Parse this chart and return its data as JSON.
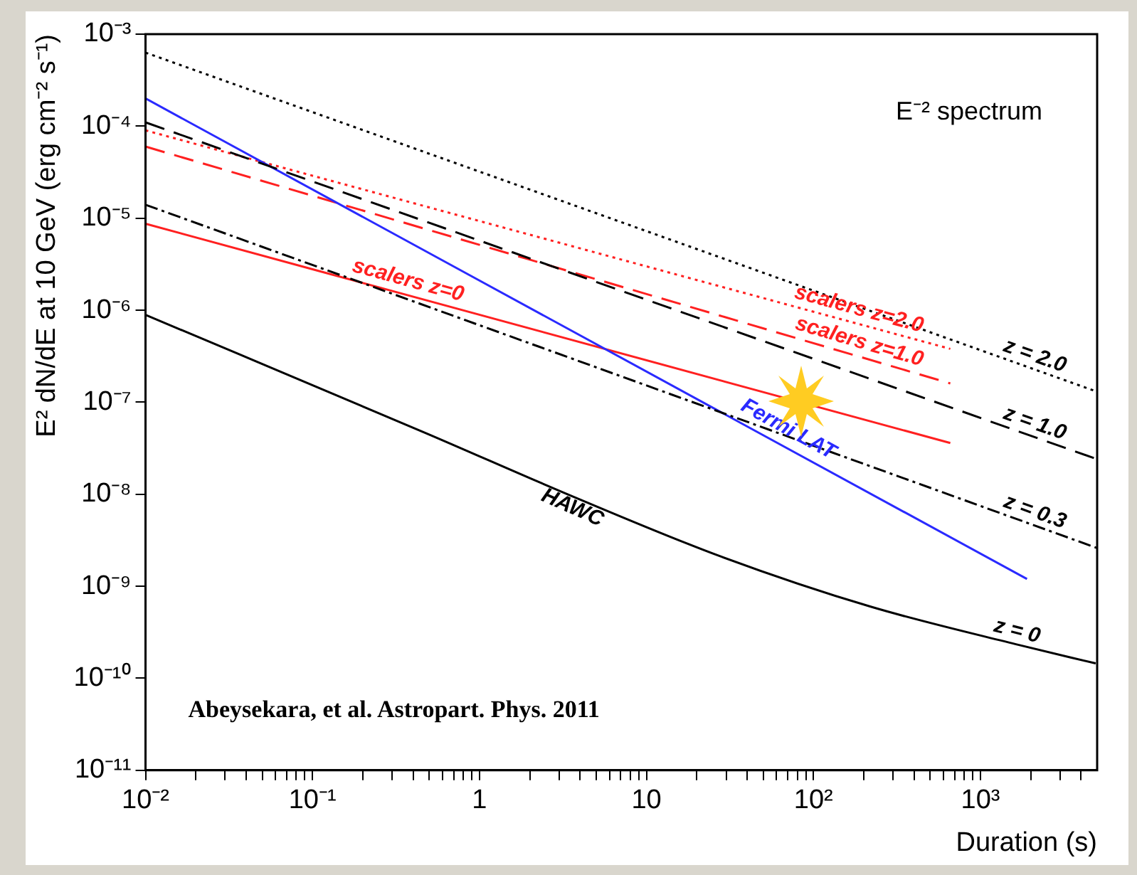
{
  "chart_data": {
    "type": "line",
    "xlabel": "Duration (s)",
    "ylabel": "E² dN/dE at 10 GeV (erg cm⁻² s⁻¹)",
    "log": "xy",
    "grid": false,
    "legend": false,
    "marker": "none",
    "xlim": [
      0.01,
      5000
    ],
    "ylim": [
      1e-11,
      0.001
    ],
    "xticks": [
      {
        "value": 0.01,
        "label": "10⁻²"
      },
      {
        "value": 0.02,
        "label": null
      },
      {
        "value": 0.03,
        "label": null
      },
      {
        "value": 0.04,
        "label": null
      },
      {
        "value": 0.05,
        "label": null
      },
      {
        "value": 0.06,
        "label": null
      },
      {
        "value": 0.07,
        "label": null
      },
      {
        "value": 0.08,
        "label": null
      },
      {
        "value": 0.09,
        "label": null
      },
      {
        "value": 0.1,
        "label": "10⁻¹"
      },
      {
        "value": 0.2,
        "label": null
      },
      {
        "value": 0.3,
        "label": null
      },
      {
        "value": 0.4,
        "label": null
      },
      {
        "value": 0.5,
        "label": null
      },
      {
        "value": 0.6,
        "label": null
      },
      {
        "value": 0.7,
        "label": null
      },
      {
        "value": 0.8,
        "label": null
      },
      {
        "value": 0.9,
        "label": null
      },
      1,
      {
        "value": 2,
        "label": null
      },
      {
        "value": 3,
        "label": null
      },
      {
        "value": 4,
        "label": null
      },
      {
        "value": 5,
        "label": null
      },
      {
        "value": 6,
        "label": null
      },
      {
        "value": 7,
        "label": null
      },
      {
        "value": 8,
        "label": null
      },
      {
        "value": 9,
        "label": null
      },
      10,
      {
        "value": 20,
        "label": null
      },
      {
        "value": 30,
        "label": null
      },
      {
        "value": 40,
        "label": null
      },
      {
        "value": 50,
        "label": null
      },
      {
        "value": 60,
        "label": null
      },
      {
        "value": 70,
        "label": null
      },
      {
        "value": 80,
        "label": null
      },
      {
        "value": 90,
        "label": null
      },
      {
        "value": 100,
        "label": "10²"
      },
      {
        "value": 200,
        "label": null
      },
      {
        "value": 300,
        "label": null
      },
      {
        "value": 400,
        "label": null
      },
      {
        "value": 500,
        "label": null
      },
      {
        "value": 600,
        "label": null
      },
      {
        "value": 700,
        "label": null
      },
      {
        "value": 800,
        "label": null
      },
      {
        "value": 900,
        "label": null
      },
      {
        "value": 1000,
        "label": "10³"
      },
      {
        "value": 2000,
        "label": null
      },
      {
        "value": 3000,
        "label": null
      },
      {
        "value": 4000,
        "label": null
      }
    ],
    "yticks": [
      {
        "value": 1e-11,
        "label": "10⁻¹¹"
      },
      {
        "value": 1e-10,
        "label": "10⁻¹⁰"
      },
      {
        "value": 1e-09,
        "label": "10⁻⁹"
      },
      {
        "value": 1e-08,
        "label": "10⁻⁸"
      },
      {
        "value": 1e-07,
        "label": "10⁻⁷"
      },
      {
        "value": 1e-06,
        "label": "10⁻⁶"
      },
      {
        "value": 1e-05,
        "label": "10⁻⁵"
      },
      {
        "value": 0.0001,
        "label": "10⁻⁴"
      },
      {
        "value": 0.001,
        "label": "10⁻³"
      }
    ],
    "series": [
      {
        "name": "z = 2.0",
        "color": "#000000",
        "line_style": "dotted",
        "x": [
          0.01,
          5000
        ],
        "values": [
          0.00063,
          1.3e-07
        ]
      },
      {
        "name": "z = 1.0",
        "color": "#000000",
        "line_style": "dashed",
        "x": [
          0.01,
          5000
        ],
        "values": [
          0.00011,
          2.4e-08
        ]
      },
      {
        "name": "z = 0.3",
        "color": "#000000",
        "line_style": "dashdot",
        "x": [
          0.01,
          5000
        ],
        "values": [
          1.4e-05,
          2.6e-09
        ]
      },
      {
        "name": "z = 0",
        "color": "#000000",
        "line_style": "solid",
        "x": [
          0.01,
          0.48,
          3.7,
          28,
          220,
          1700,
          4900
        ],
        "values": [
          8.9e-07,
          4.6e-08,
          9.3e-09,
          2.1e-09,
          6e-10,
          2.3e-10,
          1.45e-10
        ]
      },
      {
        "name": "Fermi LAT",
        "color": "#2a2aff",
        "line_style": "solid",
        "x": [
          0.01,
          1900
        ],
        "values": [
          0.0002,
          1.2e-09
        ]
      },
      {
        "name": "scalers z=0",
        "color": "#ff2020",
        "line_style": "solid",
        "x": [
          0.01,
          660
        ],
        "values": [
          8.7e-06,
          3.6e-08
        ]
      },
      {
        "name": "scalers z=1.0",
        "color": "#ff2020",
        "line_style": "dashed",
        "x": [
          0.01,
          660
        ],
        "values": [
          6e-05,
          1.6e-07
        ]
      },
      {
        "name": "scalers z=2.0",
        "color": "#ff2020",
        "line_style": "dotted",
        "x": [
          0.01,
          660
        ],
        "values": [
          9e-05,
          3.8e-07
        ]
      }
    ],
    "annotations": [
      "E⁻² spectrum",
      "HAWC",
      "Abeysekara, et al. Astropart. Phys. 2011"
    ]
  }
}
